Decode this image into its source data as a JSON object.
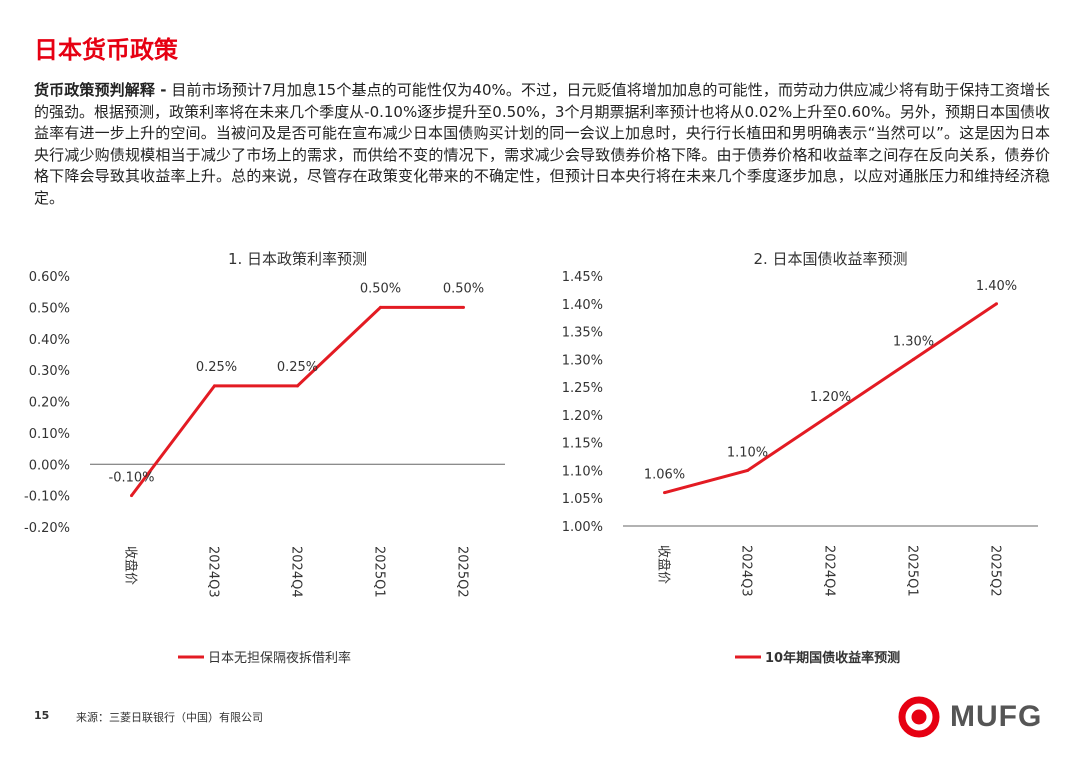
{
  "page": {
    "title": "日本货币政策",
    "lead": "货币政策预判解释 -",
    "body": " 目前市场预计7月加息15个基点的可能性仅为40%。不过，日元贬值将增加加息的可能性，而劳动力供应减少将有助于保持工资增长的强劲。根据预测，政策利率将在未来几个季度从-0.10%逐步提升至0.50%，3个月期票据利率预计也将从0.02%上升至0.60%。另外，预期日本国债收益率有进一步上升的空间。当被问及是否可能在宣布减少日本国债购买计划的同一会议上加息时，央行行长植田和男明确表示“当然可以”。这是因为日本央行减少购债规模相当于减少了市场上的需求，而供给不变的情况下，需求减少会导致债券价格下降。由于债券价格和收益率之间存在反向关系，债券价格下降会导致其收益率上升。总的来说，尽管存在政策变化带来的不确定性，但预计日本央行将在未来几个季度逐步加息，以应对通胀压力和维持经济稳定。"
  },
  "footer": {
    "page_number": "15",
    "source": "来源：三菱日联银行（中国）有限公司"
  },
  "logo": {
    "text": "MUFG",
    "brand_color": "#e60012"
  },
  "colors": {
    "accent": "#e60012",
    "line": "#e31b23",
    "axis": "#666666"
  },
  "chart_data": [
    {
      "type": "line",
      "title": "1. 日本政策利率预测",
      "categories": [
        "收盘价",
        "2024Q3",
        "2024Q4",
        "2025Q1",
        "2025Q2"
      ],
      "series": [
        {
          "name": "日本无担保隔夜拆借利率",
          "values": [
            -0.1,
            0.25,
            0.25,
            0.5,
            0.5
          ]
        }
      ],
      "data_labels": [
        "-0.10%",
        "0.25%",
        "0.25%",
        "0.50%",
        "0.50%"
      ],
      "ylim": [
        -0.2,
        0.6
      ],
      "yticks": [
        -0.2,
        -0.1,
        0.0,
        0.1,
        0.2,
        0.3,
        0.4,
        0.5,
        0.6
      ],
      "ytick_labels": [
        "-0.20%",
        "-0.10%",
        "0.00%",
        "0.10%",
        "0.20%",
        "0.30%",
        "0.40%",
        "0.50%",
        "0.60%"
      ],
      "legend_position": "bottom",
      "grid": false
    },
    {
      "type": "line",
      "title": "2. 日本国债收益率预测",
      "categories": [
        "收盘价",
        "2024Q3",
        "2024Q4",
        "2025Q1",
        "2025Q2"
      ],
      "series": [
        {
          "name": "10年期国债收益率预测",
          "values": [
            1.06,
            1.1,
            1.2,
            1.3,
            1.4
          ]
        }
      ],
      "data_labels": [
        "1.06%",
        "1.10%",
        "1.20%",
        "1.30%",
        "1.40%"
      ],
      "ylim": [
        1.0,
        1.45
      ],
      "yticks": [
        1.0,
        1.05,
        1.1,
        1.15,
        1.2,
        1.25,
        1.3,
        1.35,
        1.4,
        1.45
      ],
      "ytick_labels": [
        "1.00%",
        "1.05%",
        "1.10%",
        "1.15%",
        "1.20%",
        "1.25%",
        "1.30%",
        "1.35%",
        "1.40%",
        "1.45%"
      ],
      "legend_position": "bottom",
      "grid": false
    }
  ]
}
